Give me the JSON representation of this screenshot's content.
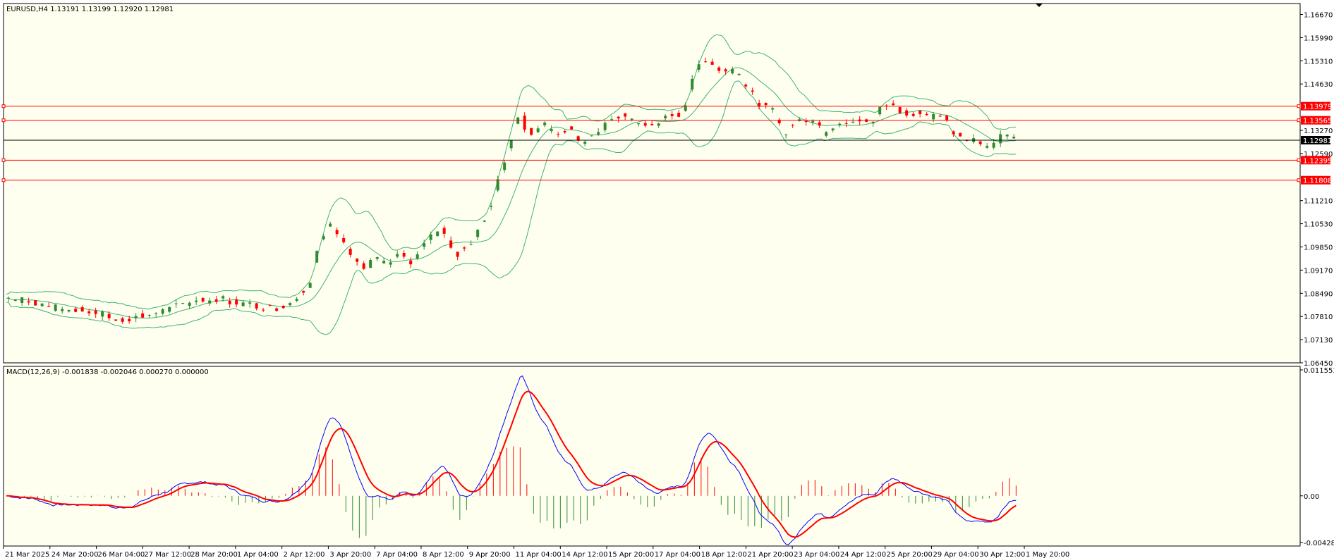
{
  "colors": {
    "background": "#fffff0",
    "frame": "#000000",
    "bull_candle": "#2e8b2e",
    "bear_candle": "#ff0000",
    "bollinger": "#3cb371",
    "hline": "#ff0000",
    "price_line": "#000000",
    "macd_main": "#0000ff",
    "macd_signal": "#ff0000",
    "hist_pos": "#ff0000",
    "hist_neg": "#2e8b2e"
  },
  "chart_data": {
    "type": "candlestick",
    "title": "EURUSD,H4  1.13191 1.13199 1.12920 1.12981",
    "symbol": "EURUSD",
    "timeframe": "H4",
    "ohlc_readout": [
      1.13191,
      1.13199,
      1.1292,
      1.12981
    ],
    "price_axis_ticks": [
      "1.16670",
      "1.15990",
      "1.15310",
      "1.14630",
      "1.13270",
      "1.12590",
      "1.11210",
      "1.10530",
      "1.09850",
      "1.09170",
      "1.08490",
      "1.07810",
      "1.07130",
      "1.06450"
    ],
    "price_tick_values": [
      1.1667,
      1.1599,
      1.1531,
      1.1463,
      1.1327,
      1.1259,
      1.1121,
      1.1053,
      1.0985,
      1.0917,
      1.0849,
      1.0781,
      1.0713,
      1.0645
    ],
    "ylim": [
      1.0645,
      1.1699
    ],
    "horizontal_levels": [
      {
        "price": 1.13979,
        "label": "1.13979"
      },
      {
        "price": 1.13565,
        "label": "1.13565"
      },
      {
        "price": 1.12395,
        "label": "1.12395"
      },
      {
        "price": 1.11808,
        "label": "1.11808"
      }
    ],
    "current_price": {
      "price": 1.12981,
      "label": "1.12981"
    },
    "time_axis_labels": [
      "21 Mar 2025",
      "24 Mar 20:00",
      "26 Mar 04:00",
      "27 Mar 12:00",
      "28 Mar 20:00",
      "1 Apr 04:00",
      "2 Apr 12:00",
      "3 Apr 20:00",
      "7 Apr 04:00",
      "8 Apr 12:00",
      "9 Apr 20:00",
      "11 Apr 04:00",
      "14 Apr 12:00",
      "15 Apr 20:00",
      "17 Apr 04:00",
      "18 Apr 12:00",
      "21 Apr 20:00",
      "23 Apr 04:00",
      "24 Apr 12:00",
      "25 Apr 20:00",
      "29 Apr 04:00",
      "30 Apr 12:00",
      "1 May 20:00"
    ],
    "series": [
      {
        "name": "EURUSD,H4",
        "kind": "candles",
        "close_path": [
          [
            0,
            1.0835
          ],
          [
            6,
            1.083
          ],
          [
            12,
            1.0825
          ],
          [
            18,
            1.081
          ],
          [
            24,
            1.0805
          ],
          [
            30,
            1.08
          ],
          [
            36,
            1.0795
          ],
          [
            42,
            1.079
          ],
          [
            48,
            1.077
          ],
          [
            54,
            1.0775
          ],
          [
            60,
            1.078
          ],
          [
            66,
            1.079
          ],
          [
            72,
            1.08
          ],
          [
            78,
            1.0815
          ],
          [
            84,
            1.083
          ],
          [
            90,
            1.083
          ],
          [
            96,
            1.0835
          ],
          [
            100,
            1.0825
          ],
          [
            108,
            1.0815
          ],
          [
            114,
            1.081
          ],
          [
            120,
            1.0805
          ],
          [
            126,
            1.082
          ],
          [
            130,
            1.084
          ],
          [
            136,
            1.088
          ],
          [
            138,
            1.095
          ],
          [
            142,
            1.102
          ],
          [
            145,
            1.105
          ],
          [
            150,
            1.102
          ],
          [
            155,
            1.096
          ],
          [
            160,
            1.092
          ],
          [
            165,
            1.095
          ],
          [
            170,
            1.093
          ],
          [
            176,
            1.096
          ],
          [
            182,
            1.094
          ],
          [
            188,
            1.1
          ],
          [
            194,
            1.104
          ],
          [
            198,
            1.1
          ],
          [
            202,
            1.096
          ],
          [
            208,
            1.1
          ],
          [
            214,
            1.106
          ],
          [
            218,
            1.113
          ],
          [
            222,
            1.122
          ],
          [
            226,
            1.13
          ],
          [
            230,
            1.14
          ],
          [
            232,
            1.133
          ],
          [
            236,
            1.132
          ],
          [
            240,
            1.135
          ],
          [
            246,
            1.132
          ],
          [
            252,
            1.133
          ],
          [
            256,
            1.129
          ],
          [
            262,
            1.131
          ],
          [
            268,
            1.134
          ],
          [
            274,
            1.137
          ],
          [
            280,
            1.136
          ],
          [
            286,
            1.134
          ],
          [
            292,
            1.135
          ],
          [
            298,
            1.137
          ],
          [
            302,
            1.137
          ],
          [
            306,
            1.145
          ],
          [
            310,
            1.152
          ],
          [
            314,
            1.154
          ],
          [
            318,
            1.151
          ],
          [
            322,
            1.15
          ],
          [
            326,
            1.151
          ],
          [
            330,
            1.147
          ],
          [
            334,
            1.143
          ],
          [
            338,
            1.14
          ],
          [
            344,
            1.138
          ],
          [
            348,
            1.131
          ],
          [
            352,
            1.134
          ],
          [
            356,
            1.136
          ],
          [
            362,
            1.136
          ],
          [
            366,
            1.132
          ],
          [
            372,
            1.135
          ],
          [
            378,
            1.135
          ],
          [
            384,
            1.136
          ],
          [
            388,
            1.135
          ],
          [
            392,
            1.14
          ],
          [
            396,
            1.14
          ],
          [
            402,
            1.138
          ],
          [
            408,
            1.138
          ],
          [
            414,
            1.137
          ],
          [
            420,
            1.136
          ],
          [
            424,
            1.132
          ],
          [
            428,
            1.13
          ],
          [
            432,
            1.13
          ],
          [
            436,
            1.129
          ],
          [
            440,
            1.128
          ],
          [
            444,
            1.13
          ],
          [
            448,
            1.132
          ],
          [
            452,
            1.1298
          ]
        ]
      },
      {
        "name": "BB upper",
        "kind": "line"
      },
      {
        "name": "BB middle",
        "kind": "line"
      },
      {
        "name": "BB lower",
        "kind": "line"
      }
    ]
  },
  "macd_panel": {
    "title": "MACD(12,26,9) -0.001838 -0.002046 0.000270 0.000000",
    "readout": [
      -0.001838,
      -0.002046,
      0.00027,
      0.0
    ],
    "axis_ticks": [
      "0.011553",
      "0.00",
      "-0.004281"
    ],
    "axis_values": [
      0.011553,
      0.0,
      -0.004281
    ],
    "ylim": [
      -0.004281,
      0.011553
    ],
    "series": [
      {
        "name": "MACD",
        "kind": "line"
      },
      {
        "name": "Signal",
        "kind": "line"
      },
      {
        "name": "Histogram",
        "kind": "bars"
      }
    ]
  }
}
